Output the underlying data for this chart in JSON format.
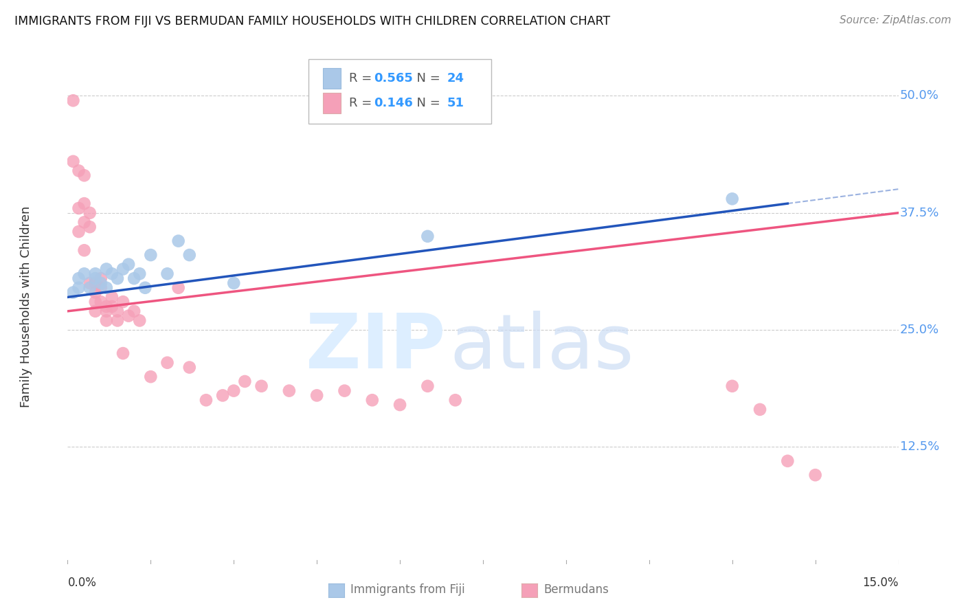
{
  "title": "IMMIGRANTS FROM FIJI VS BERMUDAN FAMILY HOUSEHOLDS WITH CHILDREN CORRELATION CHART",
  "source": "Source: ZipAtlas.com",
  "ylabel": "Family Households with Children",
  "ytick_labels": [
    "50.0%",
    "37.5%",
    "25.0%",
    "12.5%"
  ],
  "ytick_values": [
    0.5,
    0.375,
    0.25,
    0.125
  ],
  "xlim": [
    0.0,
    0.15
  ],
  "ylim": [
    0.0,
    0.55
  ],
  "legend_fiji_r": "0.565",
  "legend_fiji_n": "24",
  "legend_bermuda_r": "0.146",
  "legend_bermuda_n": "51",
  "fiji_color": "#aac8e8",
  "bermuda_color": "#f5a0b8",
  "fiji_line_color": "#2255bb",
  "bermuda_line_color": "#ee5580",
  "background_color": "#ffffff",
  "grid_color": "#cccccc",
  "fiji_x": [
    0.001,
    0.002,
    0.002,
    0.003,
    0.004,
    0.005,
    0.005,
    0.006,
    0.007,
    0.007,
    0.008,
    0.009,
    0.01,
    0.011,
    0.012,
    0.013,
    0.014,
    0.015,
    0.018,
    0.02,
    0.022,
    0.03,
    0.065,
    0.12
  ],
  "fiji_y": [
    0.29,
    0.305,
    0.295,
    0.31,
    0.295,
    0.31,
    0.305,
    0.3,
    0.315,
    0.295,
    0.31,
    0.305,
    0.315,
    0.32,
    0.305,
    0.31,
    0.295,
    0.33,
    0.31,
    0.345,
    0.33,
    0.3,
    0.35,
    0.39
  ],
  "bermuda_x": [
    0.001,
    0.001,
    0.002,
    0.002,
    0.002,
    0.003,
    0.003,
    0.003,
    0.003,
    0.004,
    0.004,
    0.004,
    0.005,
    0.005,
    0.005,
    0.005,
    0.006,
    0.006,
    0.006,
    0.007,
    0.007,
    0.007,
    0.008,
    0.008,
    0.009,
    0.009,
    0.01,
    0.01,
    0.011,
    0.012,
    0.013,
    0.015,
    0.018,
    0.02,
    0.022,
    0.025,
    0.028,
    0.03,
    0.032,
    0.035,
    0.04,
    0.045,
    0.05,
    0.055,
    0.06,
    0.065,
    0.07,
    0.12,
    0.125,
    0.13,
    0.135
  ],
  "bermuda_y": [
    0.495,
    0.43,
    0.42,
    0.38,
    0.355,
    0.415,
    0.385,
    0.365,
    0.335,
    0.375,
    0.36,
    0.3,
    0.3,
    0.29,
    0.28,
    0.27,
    0.305,
    0.295,
    0.28,
    0.275,
    0.27,
    0.26,
    0.285,
    0.275,
    0.27,
    0.26,
    0.28,
    0.225,
    0.265,
    0.27,
    0.26,
    0.2,
    0.215,
    0.295,
    0.21,
    0.175,
    0.18,
    0.185,
    0.195,
    0.19,
    0.185,
    0.18,
    0.185,
    0.175,
    0.17,
    0.19,
    0.175,
    0.19,
    0.165,
    0.11,
    0.095
  ]
}
